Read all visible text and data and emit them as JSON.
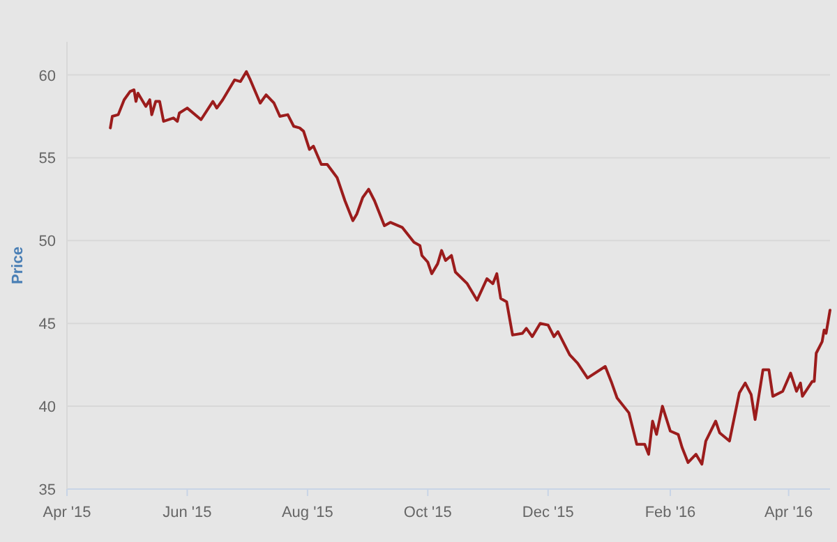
{
  "chart_data": {
    "type": "line",
    "ylabel": "Price",
    "grid": "y",
    "marker": "none",
    "line_style": "solid",
    "xlim": [
      "2015-04-01",
      "2016-04-22"
    ],
    "xticks": [
      {
        "value": "2015-04-01",
        "label": "Apr '15"
      },
      {
        "value": "2015-06-01",
        "label": "Jun '15"
      },
      {
        "value": "2015-08-01",
        "label": "Aug '15"
      },
      {
        "value": "2015-10-01",
        "label": "Oct '15"
      },
      {
        "value": "2015-12-01",
        "label": "Dec '15"
      },
      {
        "value": "2016-02-01",
        "label": "Feb '16"
      },
      {
        "value": "2016-04-01",
        "label": "Apr '16"
      }
    ],
    "ylim": [
      35,
      62
    ],
    "yticks": [
      35,
      40,
      45,
      50,
      55,
      60
    ],
    "series": [
      {
        "color": "#9b1c1c",
        "x": [
          "2015-04-23",
          "2015-04-24",
          "2015-04-27",
          "2015-04-30",
          "2015-05-03",
          "2015-05-05",
          "2015-05-06",
          "2015-05-07",
          "2015-05-11",
          "2015-05-13",
          "2015-05-14",
          "2015-05-16",
          "2015-05-18",
          "2015-05-20",
          "2015-05-25",
          "2015-05-27",
          "2015-05-28",
          "2015-06-01",
          "2015-06-08",
          "2015-06-14",
          "2015-06-16",
          "2015-06-19",
          "2015-06-25",
          "2015-06-28",
          "2015-07-01",
          "2015-07-03",
          "2015-07-08",
          "2015-07-11",
          "2015-07-15",
          "2015-07-18",
          "2015-07-22",
          "2015-07-25",
          "2015-07-28",
          "2015-07-30",
          "2015-08-02",
          "2015-08-04",
          "2015-08-08",
          "2015-08-11",
          "2015-08-16",
          "2015-08-20",
          "2015-08-24",
          "2015-08-26",
          "2015-08-29",
          "2015-09-01",
          "2015-09-04",
          "2015-09-09",
          "2015-09-12",
          "2015-09-18",
          "2015-09-24",
          "2015-09-27",
          "2015-09-28",
          "2015-10-01",
          "2015-10-03",
          "2015-10-06",
          "2015-10-08",
          "2015-10-10",
          "2015-10-13",
          "2015-10-15",
          "2015-10-21",
          "2015-10-26",
          "2015-10-31",
          "2015-11-03",
          "2015-11-05",
          "2015-11-07",
          "2015-11-10",
          "2015-11-13",
          "2015-11-18",
          "2015-11-20",
          "2015-11-23",
          "2015-11-27",
          "2015-12-01",
          "2015-12-04",
          "2015-12-06",
          "2015-12-12",
          "2015-12-16",
          "2015-12-21",
          "2015-12-30",
          "2016-01-02",
          "2016-01-05",
          "2016-01-11",
          "2016-01-15",
          "2016-01-19",
          "2016-01-21",
          "2016-01-23",
          "2016-01-25",
          "2016-01-28",
          "2016-02-01",
          "2016-02-05",
          "2016-02-07",
          "2016-02-10",
          "2016-02-14",
          "2016-02-17",
          "2016-02-19",
          "2016-02-24",
          "2016-02-26",
          "2016-03-02",
          "2016-03-07",
          "2016-03-10",
          "2016-03-13",
          "2016-03-15",
          "2016-03-19",
          "2016-03-22",
          "2016-03-24",
          "2016-03-29",
          "2016-04-02",
          "2016-04-05",
          "2016-04-07",
          "2016-04-08",
          "2016-04-13",
          "2016-04-14",
          "2016-04-15",
          "2016-04-18",
          "2016-04-19",
          "2016-04-20",
          "2016-04-22"
        ],
        "values": [
          56.8,
          57.5,
          57.6,
          58.5,
          59.0,
          59.1,
          58.4,
          58.9,
          58.1,
          58.5,
          57.6,
          58.4,
          58.4,
          57.2,
          57.4,
          57.2,
          57.7,
          58.0,
          57.3,
          58.4,
          58.0,
          58.5,
          59.7,
          59.6,
          60.2,
          59.7,
          58.3,
          58.8,
          58.3,
          57.5,
          57.6,
          56.9,
          56.8,
          56.6,
          55.5,
          55.7,
          54.6,
          54.6,
          53.8,
          52.4,
          51.2,
          51.6,
          52.6,
          53.1,
          52.4,
          50.9,
          51.1,
          50.8,
          49.9,
          49.7,
          49.1,
          48.7,
          48.0,
          48.6,
          49.4,
          48.8,
          49.1,
          48.1,
          47.4,
          46.4,
          47.7,
          47.4,
          48.0,
          46.5,
          46.3,
          44.3,
          44.4,
          44.7,
          44.2,
          45.0,
          44.9,
          44.2,
          44.5,
          43.1,
          42.6,
          41.7,
          42.4,
          41.5,
          40.5,
          39.6,
          37.7,
          37.7,
          37.1,
          39.1,
          38.3,
          40.0,
          38.5,
          38.3,
          37.5,
          36.6,
          37.1,
          36.5,
          37.9,
          39.1,
          38.4,
          37.9,
          40.8,
          41.4,
          40.7,
          39.2,
          42.2,
          42.2,
          40.6,
          40.9,
          42.0,
          40.9,
          41.4,
          40.6,
          41.5,
          41.5,
          43.2,
          43.9,
          44.6,
          44.4,
          45.8
        ]
      }
    ]
  }
}
